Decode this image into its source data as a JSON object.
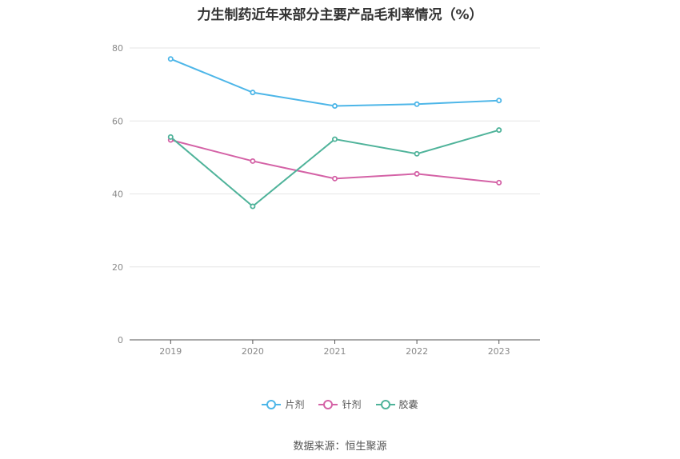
{
  "chart_data": {
    "type": "line",
    "title": "力生制药近年来部分主要产品毛利率情况（%）",
    "categories": [
      "2019",
      "2020",
      "2021",
      "2022",
      "2023"
    ],
    "ylim": [
      0,
      80
    ],
    "yticks": [
      0,
      20,
      40,
      60,
      80
    ],
    "grid": true,
    "legend_position": "bottom",
    "series": [
      {
        "name": "片剂",
        "color": "#4db6e8",
        "values": [
          77.0,
          67.8,
          64.1,
          64.6,
          65.6
        ]
      },
      {
        "name": "针剂",
        "color": "#d462a6",
        "values": [
          54.8,
          49.0,
          44.2,
          45.5,
          43.1
        ]
      },
      {
        "name": "胶囊",
        "color": "#4fb39a",
        "values": [
          55.6,
          36.6,
          55.0,
          51.0,
          57.5
        ]
      }
    ]
  },
  "source": "数据来源：恒生聚源"
}
